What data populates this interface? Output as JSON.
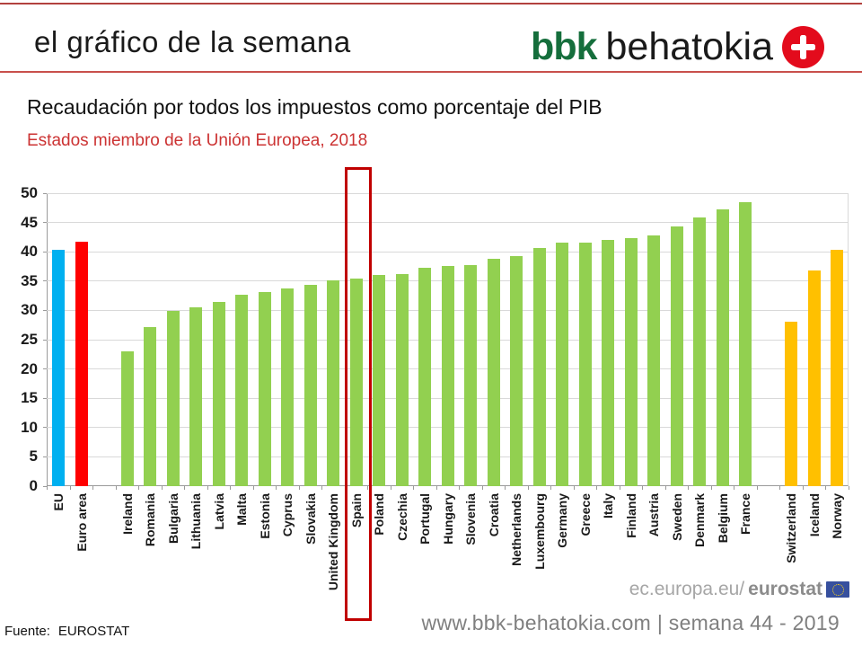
{
  "header": {
    "title": "el gráfico de la semana",
    "logo": {
      "bbk": "bbk",
      "behatokia": "behatokia",
      "plus_icon": "plus-in-red-circle"
    }
  },
  "titles": {
    "main": "Recaudación por todos los impuestos como porcentaje del PIB",
    "sub": "Estados miembro de la Unión Europea, 2018"
  },
  "chart_data": {
    "type": "bar",
    "title": "",
    "xlabel": "",
    "ylabel": "",
    "ylim": [
      0,
      50
    ],
    "yticks": [
      0,
      5,
      10,
      15,
      20,
      25,
      30,
      35,
      40,
      45,
      50
    ],
    "grid": true,
    "legend": "none",
    "colors": {
      "eu": "#00b0f0",
      "euro_area": "#ff0000",
      "eu_member": "#92d050",
      "non_eu": "#ffc000"
    },
    "highlight": {
      "label": "Spain",
      "box_color": "#c00000"
    },
    "gaps_after": [
      "Euro area",
      "France"
    ],
    "bars": [
      {
        "label": "EU",
        "value": 40.3,
        "group": "eu"
      },
      {
        "label": "Euro area",
        "value": 41.7,
        "group": "euro_area"
      },
      {
        "label": "Ireland",
        "value": 23.0,
        "group": "eu_member"
      },
      {
        "label": "Romania",
        "value": 27.1,
        "group": "eu_member"
      },
      {
        "label": "Bulgaria",
        "value": 29.9,
        "group": "eu_member"
      },
      {
        "label": "Lithuania",
        "value": 30.5,
        "group": "eu_member"
      },
      {
        "label": "Latvia",
        "value": 31.4,
        "group": "eu_member"
      },
      {
        "label": "Malta",
        "value": 32.7,
        "group": "eu_member"
      },
      {
        "label": "Estonia",
        "value": 33.2,
        "group": "eu_member"
      },
      {
        "label": "Cyprus",
        "value": 33.8,
        "group": "eu_member"
      },
      {
        "label": "Slovakia",
        "value": 34.3,
        "group": "eu_member"
      },
      {
        "label": "United Kingdom",
        "value": 35.1,
        "group": "eu_member"
      },
      {
        "label": "Spain",
        "value": 35.4,
        "group": "eu_member"
      },
      {
        "label": "Poland",
        "value": 36.1,
        "group": "eu_member"
      },
      {
        "label": "Czechia",
        "value": 36.2,
        "group": "eu_member"
      },
      {
        "label": "Portugal",
        "value": 37.2,
        "group": "eu_member"
      },
      {
        "label": "Hungary",
        "value": 37.6,
        "group": "eu_member"
      },
      {
        "label": "Slovenia",
        "value": 37.7,
        "group": "eu_member"
      },
      {
        "label": "Croatia",
        "value": 38.8,
        "group": "eu_member"
      },
      {
        "label": "Netherlands",
        "value": 39.2,
        "group": "eu_member"
      },
      {
        "label": "Luxembourg",
        "value": 40.7,
        "group": "eu_member"
      },
      {
        "label": "Germany",
        "value": 41.5,
        "group": "eu_member"
      },
      {
        "label": "Greece",
        "value": 41.5,
        "group": "eu_member"
      },
      {
        "label": "Italy",
        "value": 42.0,
        "group": "eu_member"
      },
      {
        "label": "Finland",
        "value": 42.4,
        "group": "eu_member"
      },
      {
        "label": "Austria",
        "value": 42.8,
        "group": "eu_member"
      },
      {
        "label": "Sweden",
        "value": 44.4,
        "group": "eu_member"
      },
      {
        "label": "Denmark",
        "value": 45.9,
        "group": "eu_member"
      },
      {
        "label": "Belgium",
        "value": 47.2,
        "group": "eu_member"
      },
      {
        "label": "France",
        "value": 48.4,
        "group": "eu_member"
      },
      {
        "label": "Switzerland",
        "value": 28.1,
        "group": "non_eu"
      },
      {
        "label": "Iceland",
        "value": 36.8,
        "group": "non_eu"
      },
      {
        "label": "Norway",
        "value": 40.3,
        "group": "non_eu"
      }
    ]
  },
  "footer": {
    "source_label": "Fuente:",
    "source_value": "EUROSTAT",
    "eurostat_plain": "ec.europa.eu/",
    "eurostat_bold": "eurostat",
    "eu_flag_icon": "eu-flag",
    "site": "www.bbk-behatokia.com | semana 44 - 2019"
  }
}
